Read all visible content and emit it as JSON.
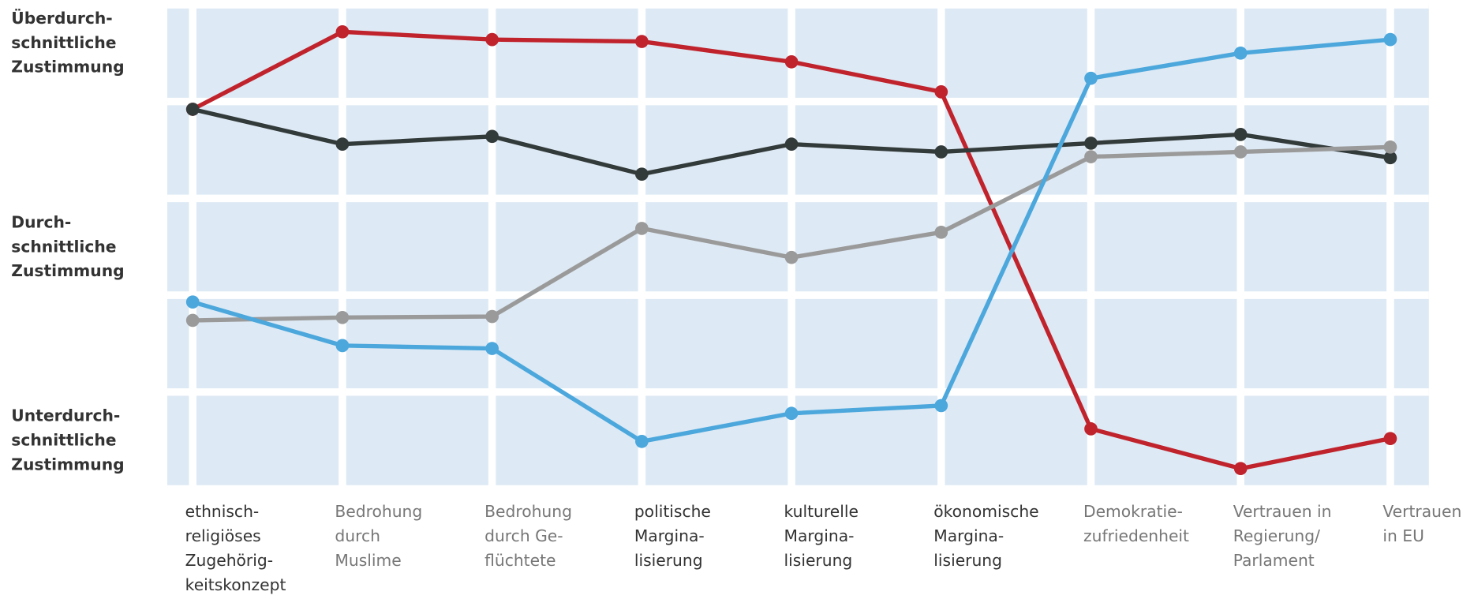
{
  "chart_data": {
    "type": "line",
    "categories": [
      "ethnisch-\nreligiöses\nZugehörig-\nkeitskonzept",
      "Bedrohung\ndurch\nMuslime",
      "Bedrohung\ndurch Ge-\nflüchtete",
      "politische\nMargina-\nlisierung",
      "kulturelle\nMargina-\nlisierung",
      "ökonomische\nMargina-\nlisierung",
      "Demokratie-\nzufriedenheit",
      "Vertrauen in\nRegierung/\nParlament",
      "Vertrauen\nin EU"
    ],
    "category_colors": [
      "#333333",
      "#777777",
      "#777777",
      "#333333",
      "#333333",
      "#333333",
      "#777777",
      "#777777",
      "#777777"
    ],
    "series": [
      {
        "color": "#c0232c",
        "values": [
          3.92,
          4.72,
          4.64,
          4.62,
          4.41,
          4.1,
          0.62,
          0.21,
          0.52
        ]
      },
      {
        "color": "#333a3a",
        "values": [
          3.92,
          3.56,
          3.64,
          3.25,
          3.56,
          3.48,
          3.57,
          3.66,
          3.42
        ]
      },
      {
        "color": "#9a9a9a",
        "values": [
          1.74,
          1.77,
          1.78,
          2.69,
          2.39,
          2.65,
          3.43,
          3.48,
          3.53
        ]
      },
      {
        "color": "#4ba7dc",
        "values": [
          1.93,
          1.48,
          1.45,
          0.49,
          0.78,
          0.86,
          4.24,
          4.5,
          4.64
        ]
      }
    ],
    "ylim": [
      0,
      5
    ],
    "ygrid": [
      0,
      1,
      2,
      3,
      4,
      5
    ],
    "yticks": [
      {
        "value": 4.6,
        "label": "Überdurch-\nschnittliche\nZustimmung"
      },
      {
        "value": 2.5,
        "label": "Durch-\nschnittliche\nZustimmung"
      },
      {
        "value": 0.5,
        "label": "Unterdurch-\nschnittliche\nZustimmung"
      }
    ]
  }
}
